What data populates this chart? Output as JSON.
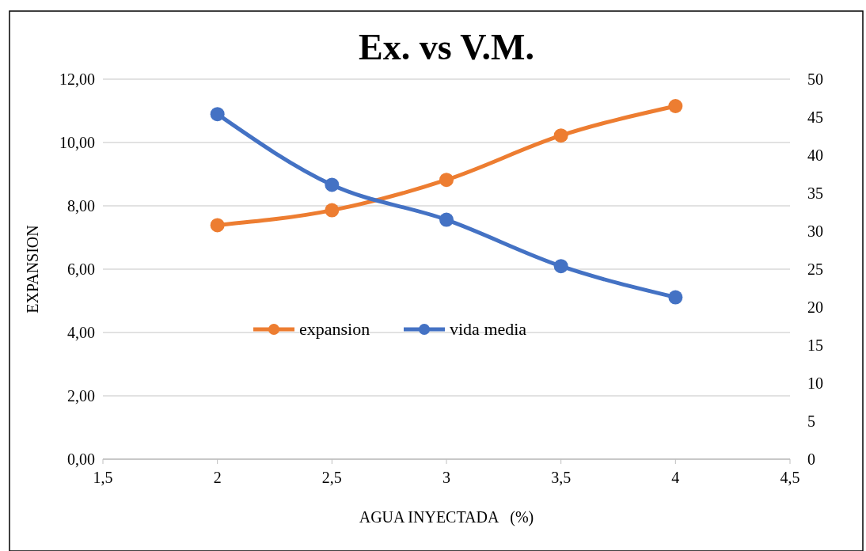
{
  "chart_data": {
    "type": "line",
    "title": "Ex. vs V.M.",
    "xlabel": "AGUA INYECTADA   (%)",
    "ylabel": "EXPANSION",
    "x": [
      2,
      2.5,
      3,
      3.5,
      4
    ],
    "series": [
      {
        "name": "expansion",
        "color": "#ed7d31",
        "values": [
          7.39,
          7.86,
          8.82,
          10.22,
          11.15
        ]
      },
      {
        "name": "vida media",
        "color": "#4472c4",
        "values": [
          45.4,
          36.1,
          31.5,
          25.4,
          21.3
        ],
        "axis": "y2"
      }
    ],
    "xlim": [
      1.5,
      4.5
    ],
    "xticks": [
      {
        "value": 1.5,
        "label": "1,5"
      },
      2,
      {
        "value": 2.5,
        "label": "2,5"
      },
      3,
      {
        "value": 3.5,
        "label": "3,5"
      },
      4,
      {
        "value": 4.5,
        "label": "4,5"
      }
    ],
    "ylim": [
      0,
      12
    ],
    "yticks": [
      {
        "value": 0,
        "label": "0,00"
      },
      {
        "value": 2,
        "label": "2,00"
      },
      {
        "value": 4,
        "label": "4,00"
      },
      {
        "value": 6,
        "label": "6,00"
      },
      {
        "value": 8,
        "label": "8,00"
      },
      {
        "value": 10,
        "label": "10,00"
      },
      {
        "value": 12,
        "label": "12,00"
      }
    ],
    "y2lim": [
      0,
      50
    ],
    "y2ticks": [
      0,
      5,
      10,
      15,
      20,
      25,
      30,
      35,
      40,
      45,
      50
    ],
    "grid": "y",
    "legend": "center",
    "marker": "circle",
    "line_style": "solid"
  }
}
